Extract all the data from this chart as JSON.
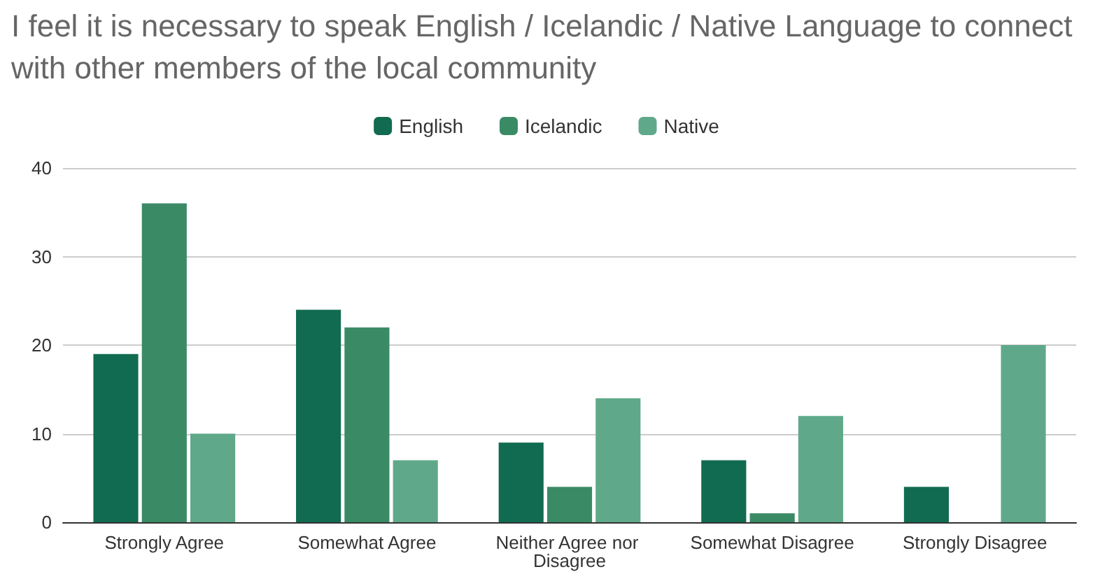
{
  "chart_data": {
    "type": "bar",
    "title": "I feel it is necessary to speak English / Icelandic / Native Language to connect with other members of the local community",
    "categories": [
      "Strongly Agree",
      "Somewhat Agree",
      "Neither Agree nor Disagree",
      "Somewhat Disagree",
      "Strongly Disagree"
    ],
    "series": [
      {
        "name": "English",
        "color": "#116b50",
        "values": [
          19,
          24,
          9,
          7,
          4
        ]
      },
      {
        "name": "Icelandic",
        "color": "#3b8a66",
        "values": [
          36,
          22,
          4,
          1,
          0
        ]
      },
      {
        "name": "Native",
        "color": "#5fa98a",
        "values": [
          10,
          7,
          14,
          12,
          20
        ]
      }
    ],
    "ylim": [
      0,
      40
    ],
    "yticks": [
      0,
      10,
      20,
      30,
      40
    ],
    "grid": "y",
    "legend": "top"
  }
}
